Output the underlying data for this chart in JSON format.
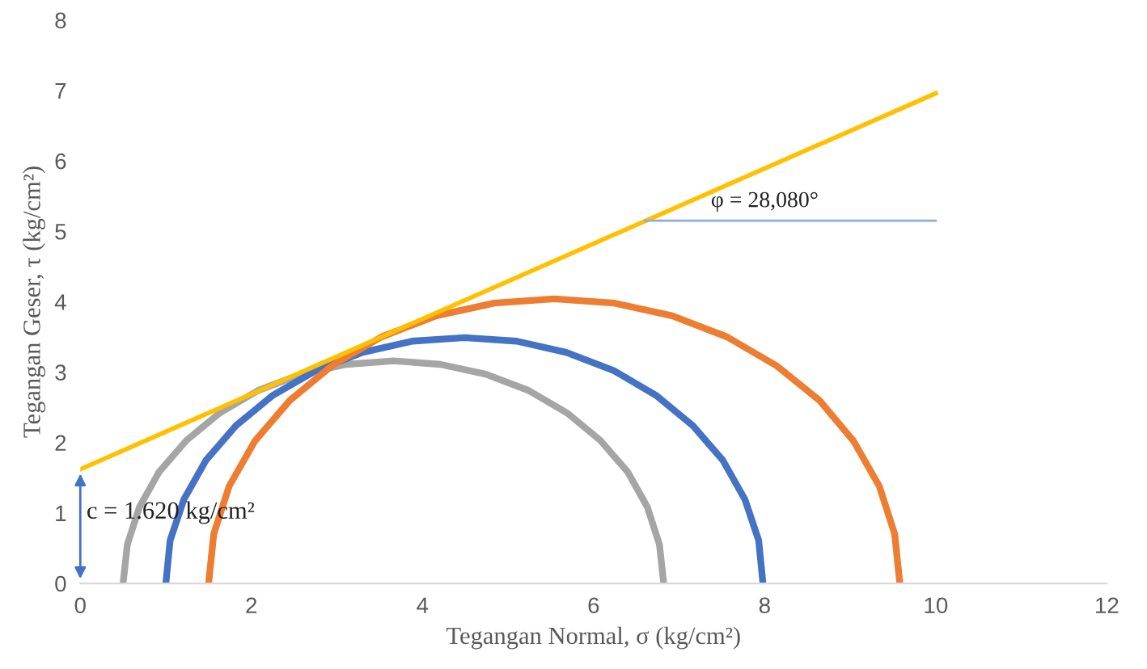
{
  "chart_data": {
    "type": "line",
    "xlabel": "Tegangan Normal, σ (kg/cm²)",
    "ylabel": "Tegangan Geser, τ (kg/cm²)",
    "xlim": [
      0,
      12
    ],
    "xticks": [
      0,
      2,
      4,
      6,
      8,
      10,
      12
    ],
    "ylim": [
      0,
      8
    ],
    "yticks": [
      0,
      1,
      2,
      3,
      4,
      5,
      6,
      7,
      8
    ],
    "grid": false,
    "legend": false,
    "marker": "none",
    "line_style": "solid",
    "series": [
      {
        "color": "#a5a5a5",
        "x": [
          6.82,
          6.77,
          6.63,
          6.4,
          6.08,
          5.69,
          5.24,
          4.74,
          4.21,
          3.66,
          3.11,
          2.58,
          2.08,
          1.63,
          1.24,
          0.92,
          0.69,
          0.55,
          0.5
        ],
        "values": [
          0,
          0.55,
          1.08,
          1.58,
          2.03,
          2.42,
          2.74,
          2.97,
          3.11,
          3.16,
          3.11,
          2.97,
          2.74,
          2.42,
          2.03,
          1.58,
          1.08,
          0.55,
          0
        ]
      },
      {
        "color": "#4472c4",
        "x": [
          7.98,
          7.93,
          7.77,
          7.51,
          7.16,
          6.73,
          6.24,
          5.68,
          5.1,
          4.49,
          3.88,
          3.3,
          2.75,
          2.25,
          1.82,
          1.47,
          1.21,
          1.05,
          1.0
        ],
        "values": [
          0,
          0.61,
          1.19,
          1.75,
          2.24,
          2.67,
          3.02,
          3.28,
          3.44,
          3.49,
          3.44,
          3.28,
          3.02,
          2.67,
          2.24,
          1.75,
          1.19,
          0.61,
          0
        ]
      },
      {
        "color": "#ed7d31",
        "x": [
          9.58,
          9.52,
          9.34,
          9.04,
          8.64,
          8.14,
          7.56,
          6.92,
          6.24,
          5.54,
          4.84,
          4.16,
          3.52,
          2.94,
          2.45,
          2.04,
          1.74,
          1.56,
          1.5
        ],
        "values": [
          0,
          0.7,
          1.38,
          2.02,
          2.6,
          3.09,
          3.5,
          3.8,
          3.98,
          4.04,
          3.98,
          3.8,
          3.5,
          3.09,
          2.6,
          2.02,
          1.38,
          0.7,
          0
        ]
      },
      {
        "color": "#ffc000",
        "x": [
          0,
          10
        ],
        "values": [
          1.62,
          6.96
        ]
      },
      {
        "color": "#8faadc",
        "x": [
          6.6,
          10
        ],
        "values": [
          5.15,
          5.15
        ]
      }
    ],
    "annotations": [
      {
        "text": "c = 1.620 kg/cm²",
        "x": 0,
        "y": 1.62
      },
      {
        "text": "φ = 28,080°",
        "x": 8,
        "y": 5.15
      }
    ]
  }
}
